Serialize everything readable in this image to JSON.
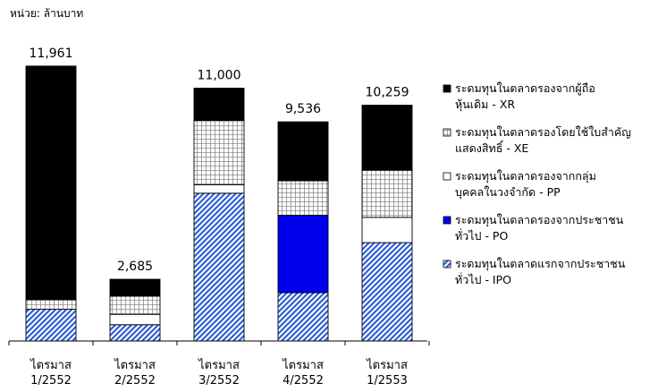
{
  "chart_data": {
    "type": "bar",
    "stacked": true,
    "unit_label": "หน่วย: ล้านบาท",
    "categories": [
      [
        "ไตรมาส",
        "1/2552"
      ],
      [
        "ไตรมาส",
        "2/2552"
      ],
      [
        "ไตรมาส",
        "3/2552"
      ],
      [
        "ไตรมาส",
        "4/2552"
      ],
      [
        "ไตรมาส",
        "1/2553"
      ]
    ],
    "totals": [
      "11,961",
      "2,685",
      "11,000",
      "9,536",
      "10,259"
    ],
    "total_values": [
      11961,
      2685,
      11000,
      9536,
      10259
    ],
    "ylim": [
      0,
      12500
    ],
    "grid": false,
    "legend_position": "right",
    "series": [
      {
        "name": "ระดมทุนในตลาดแรกจากประชาชนทั่วไป - IPO",
        "legend_lines": [
          "ระดมทุนในตลาดแรกจากประชาชน",
          "ทั่วไป - IPO"
        ],
        "pattern": "hatch",
        "color": "#2f5fd6",
        "values": [
          1380,
          710,
          6430,
          2100,
          4280
        ]
      },
      {
        "name": "ระดมทุนในตลาดรองจากประชาชนทั่วไป - PO",
        "legend_lines": [
          "ระดมทุนในตลาดรองจากประชาชน",
          "ทั่วไป - PO"
        ],
        "pattern": "solid",
        "color": "#0000ee",
        "values": [
          0,
          0,
          0,
          3370,
          0
        ]
      },
      {
        "name": "ระดมทุนในตลาดรองจากกลุ่มบุคคลในวงจำกัด - PP",
        "legend_lines": [
          "ระดมทุนในตลาดรองจากกลุ่ม",
          "บุคคลในวงจำกัด - PP"
        ],
        "pattern": "white",
        "color": "#ffffff",
        "values": [
          0,
          450,
          370,
          0,
          1100
        ]
      },
      {
        "name": "ระดมทุนในตลาดรองโดยใช้ใบสำคัญแสดงสิทธิ์ - XE",
        "legend_lines": [
          "ระดมทุนในตลาดรองโดยใช้ใบสำคัญ",
          "แสดงสิทธิ์ - XE"
        ],
        "pattern": "grid",
        "color": "#808080",
        "values": [
          420,
          790,
          2800,
          1500,
          2050
        ]
      },
      {
        "name": "ระดมทุนในตลาดรองจากผู้ถือหุ้นเดิม - XR",
        "legend_lines": [
          "ระดมทุนในตลาดรองจากผู้ถือ",
          "หุ้นเดิม - XR"
        ],
        "pattern": "solid",
        "color": "#000000",
        "values": [
          10161,
          735,
          1400,
          2566,
          2829
        ]
      }
    ],
    "legend_order": [
      4,
      3,
      2,
      1,
      0
    ]
  }
}
